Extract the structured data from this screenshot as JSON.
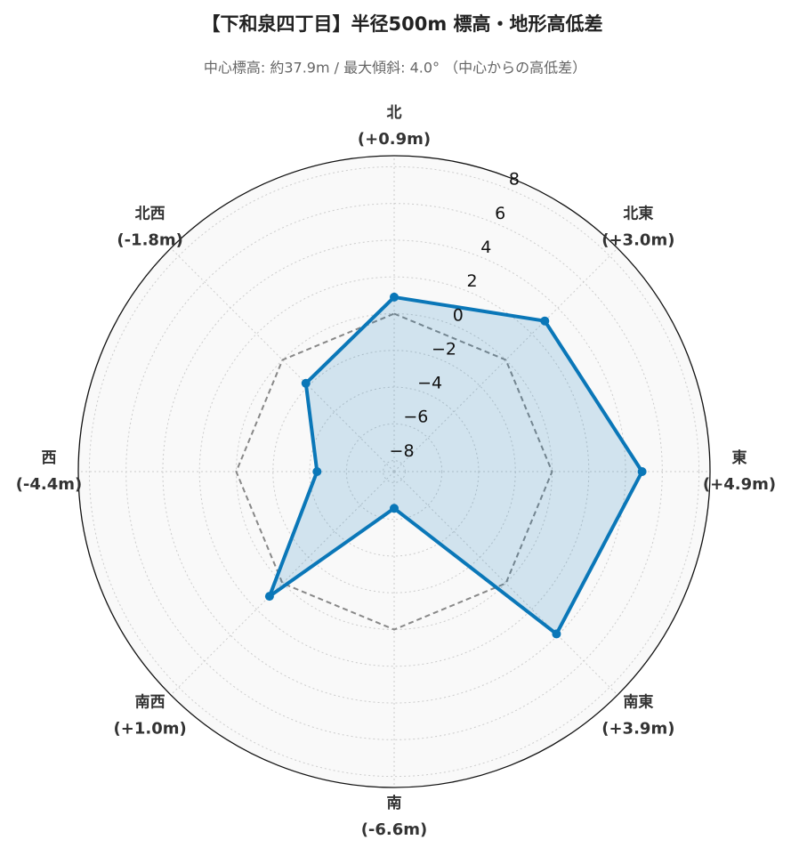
{
  "chart_data": {
    "type": "radar",
    "title": "【下和泉四丁目】半径500m 標高・地形高低差",
    "subtitle": "中心標高: 約37.9m / 最大傾斜: 4.0° （中心からの高低差）",
    "categories": [
      "北",
      "北東",
      "東",
      "南東",
      "南",
      "南西",
      "西",
      "北西"
    ],
    "values": [
      0.9,
      3.0,
      4.9,
      3.9,
      -6.6,
      1.0,
      -4.4,
      -1.8
    ],
    "value_labels": [
      "(+0.9m)",
      "(+3.0m)",
      "(+4.9m)",
      "(+3.9m)",
      "(-6.6m)",
      "(+1.0m)",
      "(-4.4m)",
      "(-1.8m)"
    ],
    "color": "#0a77b8",
    "reference": 0,
    "ylim": [
      -8.6,
      8.6
    ],
    "yticks": [
      {
        "value": -8,
        "label": "−8"
      },
      {
        "value": -6,
        "label": "−6"
      },
      {
        "value": -4,
        "label": "−4"
      },
      {
        "value": -2,
        "label": "−2"
      },
      0,
      2,
      4,
      6,
      8
    ],
    "grid": true
  }
}
